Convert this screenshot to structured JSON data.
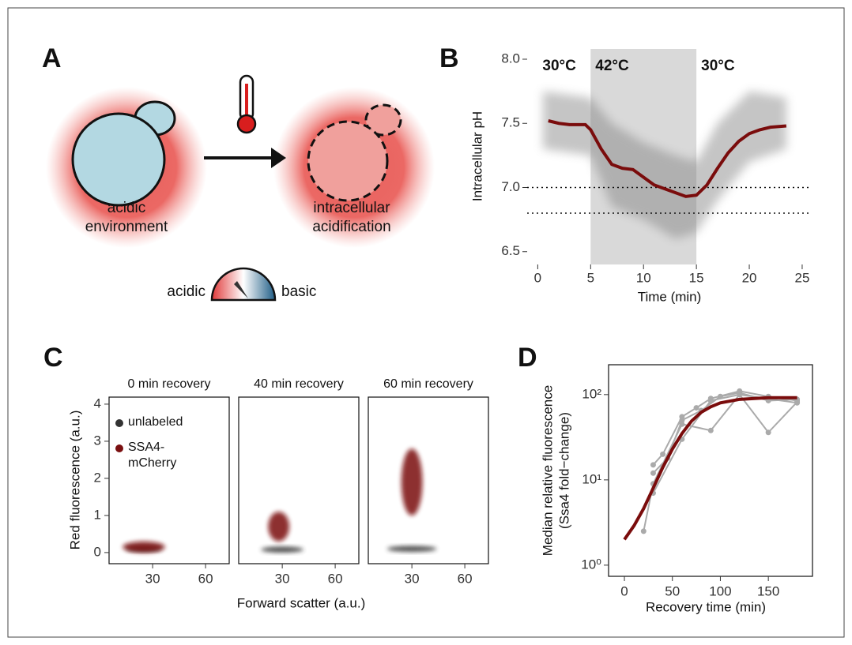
{
  "panel_labels": [
    "A",
    "B",
    "C",
    "D"
  ],
  "diagram": {
    "environment_label": [
      "acidic",
      "environment"
    ],
    "cell_label": [
      "intracellular",
      "acidification"
    ],
    "scale_low": "acidic",
    "scale_high": "basic"
  },
  "chart_data": [
    {
      "type": "line",
      "xlabel": "Time (min)",
      "ylabel": "Intracellular pH",
      "xlim": [
        -1,
        25.9
      ],
      "ylim": [
        6.4,
        8.08
      ],
      "xticks": [
        0,
        5,
        10,
        15,
        20,
        25
      ],
      "yticks": [
        6.5,
        {
          "value": 7,
          "label": "7.0"
        },
        7.5,
        {
          "value": 8,
          "label": "8.0"
        }
      ],
      "periods": [
        {
          "label": "30°C",
          "start": 0,
          "end": 5,
          "shaded": false
        },
        {
          "label": "42°C",
          "start": 5,
          "end": 15,
          "shaded": true
        },
        {
          "label": "30°C",
          "start": 15,
          "end": 25,
          "shaded": false
        }
      ],
      "hlines": [
        7.0,
        6.8
      ],
      "band": {
        "color": "#7f7f7f",
        "x": [
          0.5,
          5,
          7,
          10,
          13,
          15,
          17,
          20,
          23.5
        ],
        "lower": [
          7.3,
          7.25,
          6.85,
          6.75,
          6.6,
          6.65,
          6.9,
          7.2,
          7.3
        ],
        "upper": [
          7.75,
          7.7,
          7.5,
          7.35,
          7.25,
          7.2,
          7.5,
          7.75,
          7.7
        ]
      },
      "series": [
        {
          "color": "#7a0c0c",
          "x": [
            1,
            2,
            3,
            4.5,
            5,
            6,
            7,
            8,
            9,
            10,
            11,
            12,
            13,
            14,
            15,
            16,
            17,
            18,
            19,
            20,
            21,
            22,
            23.5
          ],
          "values": [
            7.52,
            7.5,
            7.49,
            7.49,
            7.45,
            7.3,
            7.18,
            7.15,
            7.14,
            7.08,
            7.02,
            6.99,
            6.96,
            6.93,
            6.94,
            7.02,
            7.15,
            7.27,
            7.36,
            7.42,
            7.45,
            7.47,
            7.48
          ]
        }
      ]
    },
    {
      "type": "scatter",
      "xlabel": "Forward scatter (a.u.)",
      "ylabel": "Red fluorescence (a.u.)",
      "xlim": [
        5.3,
        73.4
      ],
      "ylim": [
        -0.3,
        4.19
      ],
      "xticks": [
        30,
        60
      ],
      "yticks": [
        0,
        1,
        2,
        3,
        4
      ],
      "series": [
        {
          "name": "unlabeled",
          "color": "#333333"
        },
        {
          "name": "SSA4-mCherry",
          "color": "#7a0f10"
        }
      ],
      "facets": [
        {
          "title": "0 min recovery",
          "clouds": [
            {
              "series": 0,
              "x": 25,
              "y": 0.1,
              "x_spread": 10,
              "y_spread": 0.07
            },
            {
              "series": 1,
              "x": 25,
              "y": 0.15,
              "x_spread": 12,
              "y_spread": 0.15
            }
          ]
        },
        {
          "title": "40 min recovery",
          "clouds": [
            {
              "series": 0,
              "x": 30,
              "y": 0.08,
              "x_spread": 12,
              "y_spread": 0.08
            },
            {
              "series": 1,
              "x": 28,
              "y": 0.7,
              "x_spread": 6,
              "y_spread": 0.4
            }
          ]
        },
        {
          "title": "60 min recovery",
          "clouds": [
            {
              "series": 0,
              "x": 30,
              "y": 0.1,
              "x_spread": 14,
              "y_spread": 0.08
            },
            {
              "series": 1,
              "x": 30,
              "y": 1.9,
              "x_spread": 6,
              "y_spread": 0.9
            }
          ]
        }
      ]
    },
    {
      "type": "line",
      "log_y": true,
      "xlabel": "Recovery time (min)",
      "ylabel": [
        "Median relative fluorescence",
        "(Ssa4 fold−change)"
      ],
      "xlim": [
        -16.5,
        196
      ],
      "ylim": [
        0.74,
        224
      ],
      "xticks": [
        0,
        50,
        100,
        150
      ],
      "yticks": [
        {
          "value": 1,
          "label": "10⁰"
        },
        {
          "value": 10,
          "label": "10¹"
        },
        {
          "value": 100,
          "label": "10²"
        }
      ],
      "series": [
        {
          "color": "#aaaaaa",
          "markers": true,
          "x": [
            20,
            30,
            60,
            90,
            120,
            150,
            180
          ],
          "values": [
            2.5,
            9,
            45,
            38,
            100,
            36,
            82
          ]
        },
        {
          "color": "#aaaaaa",
          "markers": true,
          "x": [
            30,
            40,
            60,
            75,
            90,
            120,
            150,
            180
          ],
          "values": [
            15,
            20,
            55,
            70,
            90,
            110,
            95,
            85
          ]
        },
        {
          "color": "#aaaaaa",
          "markers": true,
          "x": [
            30,
            45,
            60,
            80,
            100,
            120,
            150,
            180
          ],
          "values": [
            12,
            18,
            50,
            65,
            95,
            105,
            85,
            88
          ]
        },
        {
          "color": "#aaaaaa",
          "markers": true,
          "x": [
            30,
            60,
            90,
            120,
            180
          ],
          "values": [
            7,
            30,
            85,
            100,
            80
          ]
        },
        {
          "color": "#7a0c0c",
          "markers": false,
          "x": [
            0,
            10,
            20,
            30,
            40,
            50,
            60,
            70,
            80,
            90,
            100,
            120,
            150,
            180
          ],
          "values": [
            2,
            2.9,
            4.6,
            8,
            14,
            23,
            35,
            49,
            62,
            72,
            80,
            88,
            92,
            92
          ]
        }
      ]
    }
  ]
}
